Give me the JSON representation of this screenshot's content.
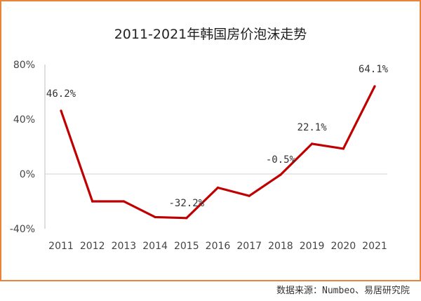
{
  "chart_data": {
    "type": "line",
    "title": "2011-2021年韩国房价泡沫走势",
    "x": [
      "2011",
      "2012",
      "2013",
      "2014",
      "2015",
      "2016",
      "2017",
      "2018",
      "2019",
      "2020",
      "2021"
    ],
    "series": [
      {
        "values": [
          46.2,
          -20,
          -20,
          -31.5,
          -32.2,
          -10,
          -16,
          -0.5,
          22.1,
          18.5,
          64.1
        ],
        "color": "#c00000"
      }
    ],
    "y_ticks": [
      "80%",
      "40%",
      "0%",
      "-40%"
    ],
    "ylim": [
      -40,
      80
    ],
    "data_labels": [
      {
        "index": 0,
        "text": "46.2%"
      },
      {
        "index": 4,
        "text": "-32.2%"
      },
      {
        "index": 7,
        "text": "-0.5%"
      },
      {
        "index": 8,
        "text": "22.1%"
      },
      {
        "index": 10,
        "text": "64.1%"
      }
    ],
    "grid": false
  },
  "source": "数据来源：Numbeo、易居研究院",
  "colors": {
    "border": "#e8833a",
    "line": "#c00000"
  }
}
